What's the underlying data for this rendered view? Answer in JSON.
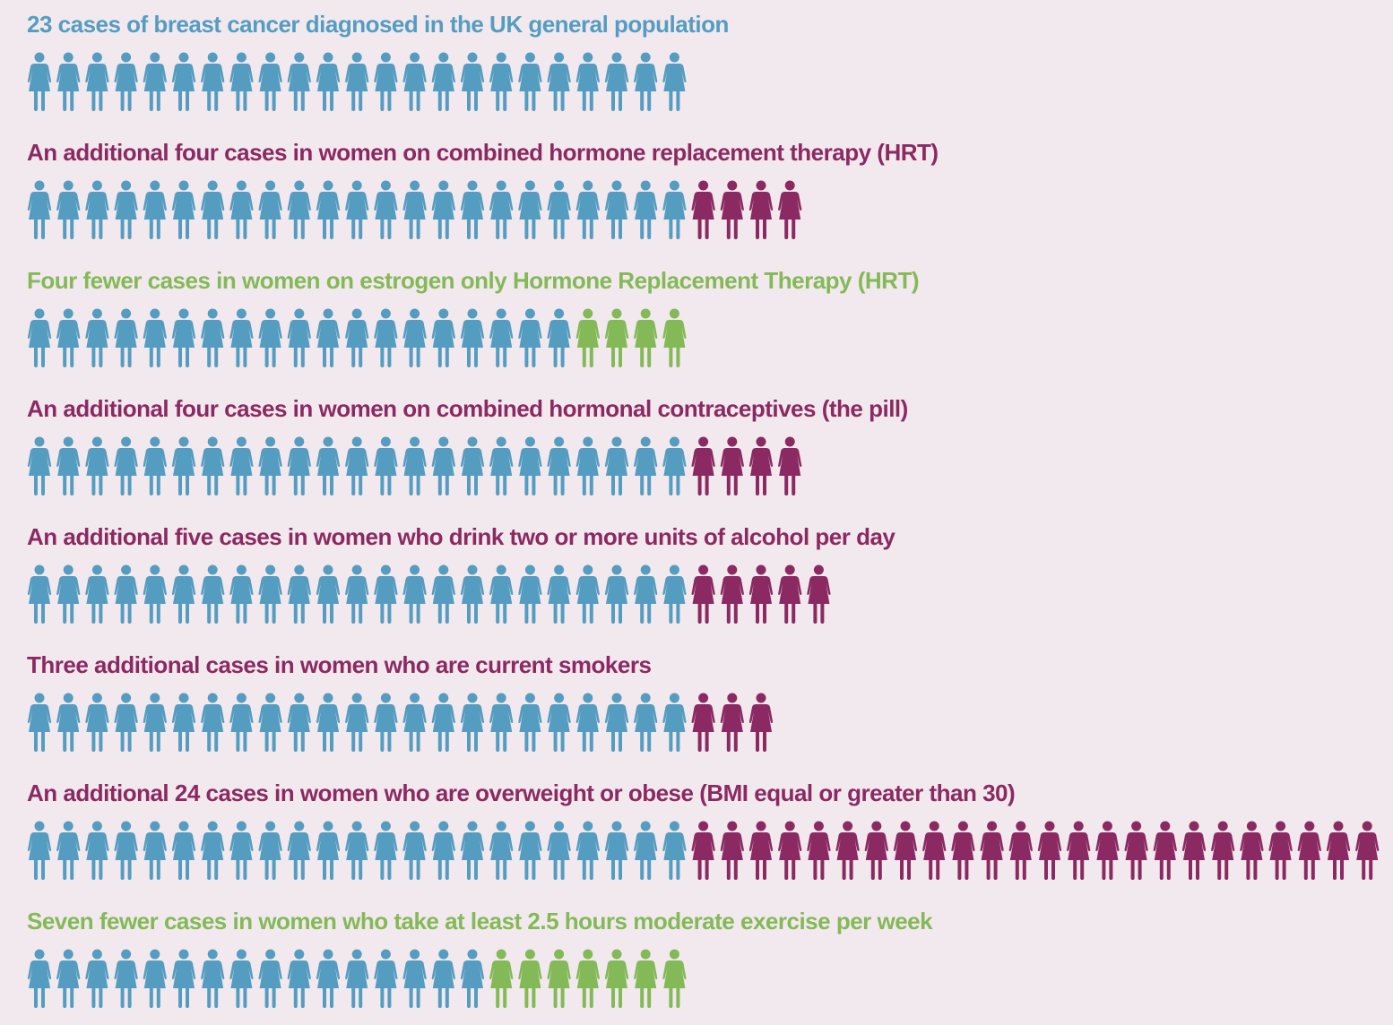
{
  "chart_data": {
    "type": "pictogram",
    "rows": [
      {
        "title": "23 cases of breast cancer diagnosed in the UK general population",
        "color": "#559dc0",
        "segments": [
          {
            "count": 23,
            "color": "#559dc0"
          }
        ]
      },
      {
        "title": "An additional four cases in women on combined hormone replacement therapy (HRT)",
        "color": "#8b2a62",
        "segments": [
          {
            "count": 23,
            "color": "#559dc0"
          },
          {
            "count": 4,
            "color": "#8b2a62"
          }
        ]
      },
      {
        "title": "Four fewer cases in women on estrogen only Hormone Replacement Therapy (HRT)",
        "color": "#84b957",
        "segments": [
          {
            "count": 19,
            "color": "#559dc0"
          },
          {
            "count": 4,
            "color": "#84b957"
          }
        ]
      },
      {
        "title": "An additional four cases in women on combined hormonal contraceptives (the pill)",
        "color": "#8b2a62",
        "segments": [
          {
            "count": 23,
            "color": "#559dc0"
          },
          {
            "count": 4,
            "color": "#8b2a62"
          }
        ]
      },
      {
        "title": "An additional five cases in women who drink two or more units of alcohol per day",
        "color": "#8b2a62",
        "segments": [
          {
            "count": 23,
            "color": "#559dc0"
          },
          {
            "count": 5,
            "color": "#8b2a62"
          }
        ]
      },
      {
        "title": "Three additional cases in women who are current smokers",
        "color": "#8b2a62",
        "segments": [
          {
            "count": 23,
            "color": "#559dc0"
          },
          {
            "count": 3,
            "color": "#8b2a62"
          }
        ]
      },
      {
        "title": "An additional 24 cases in women who are overweight or obese (BMI equal or greater than 30)",
        "color": "#8b2a62",
        "segments": [
          {
            "count": 23,
            "color": "#559dc0"
          },
          {
            "count": 24,
            "color": "#8b2a62"
          }
        ]
      },
      {
        "title": "Seven fewer cases in women who take at least 2.5 hours moderate exercise per week",
        "color": "#84b957",
        "segments": [
          {
            "count": 16,
            "color": "#559dc0"
          },
          {
            "count": 7,
            "color": "#84b957"
          }
        ]
      }
    ]
  }
}
